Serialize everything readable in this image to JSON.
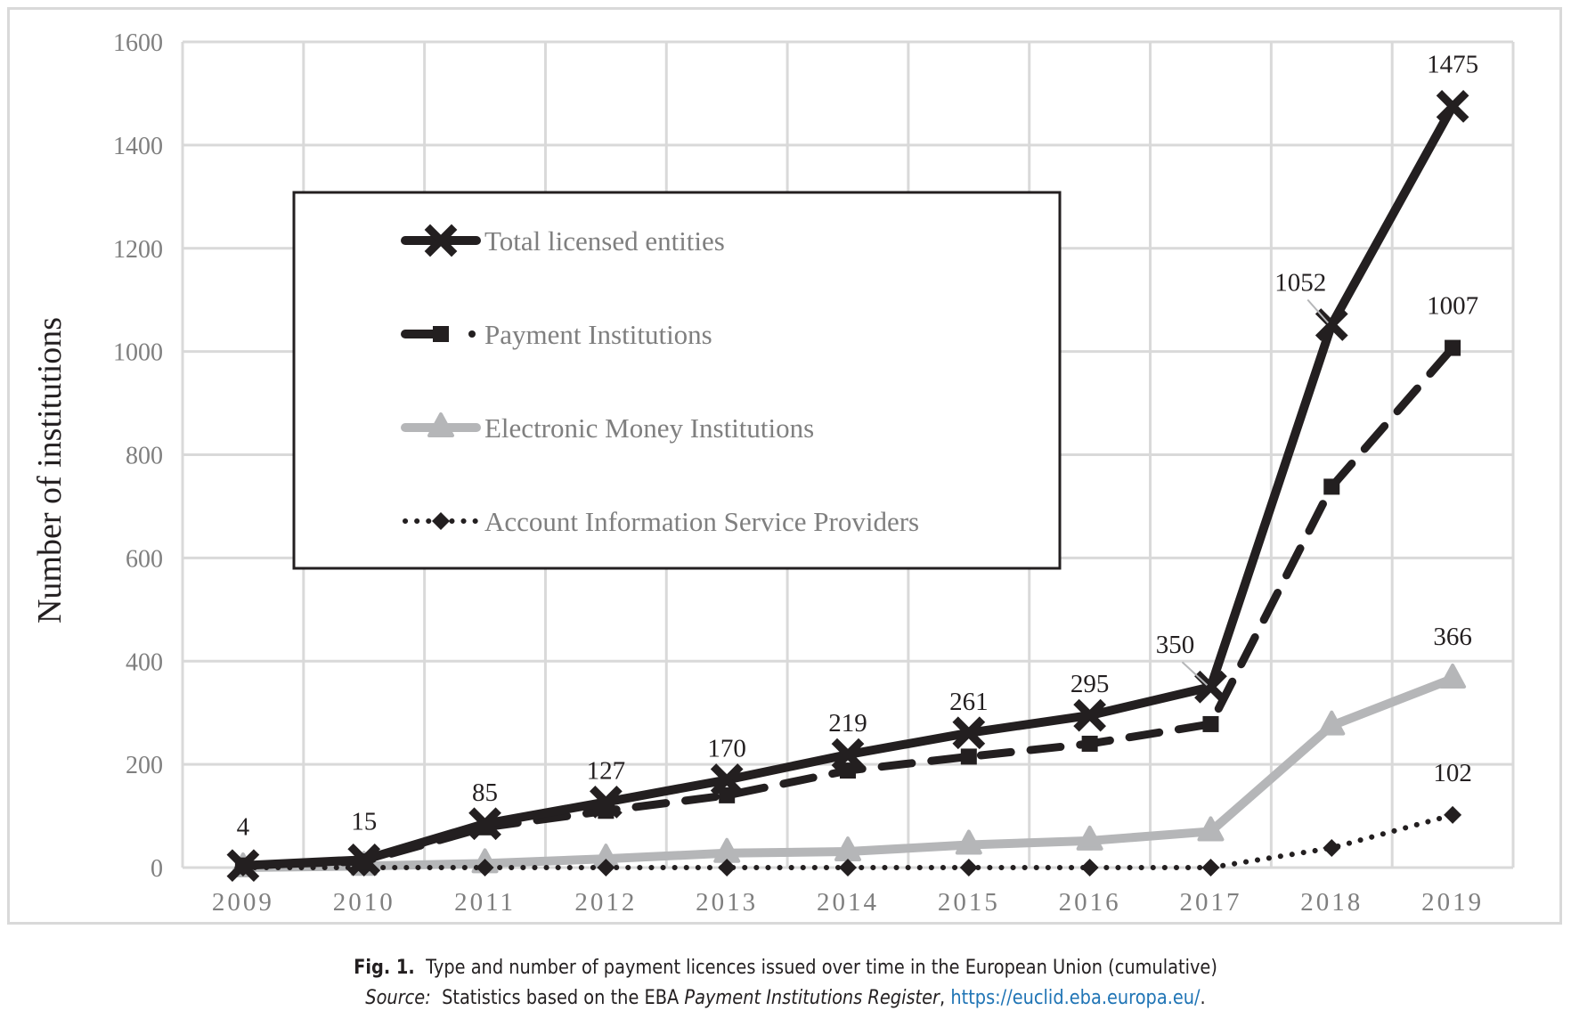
{
  "chart_data": {
    "type": "line",
    "title": "",
    "xlabel": "",
    "ylabel": "Number of institutions",
    "categories": [
      "2009",
      "2010",
      "2011",
      "2012",
      "2013",
      "2014",
      "2015",
      "2016",
      "2017",
      "2018",
      "2019"
    ],
    "ylim": [
      0,
      1600
    ],
    "yticks": [
      0,
      200,
      400,
      600,
      800,
      1000,
      1200,
      1400,
      1600
    ],
    "grid": true,
    "legend_position": "upper-left-inside",
    "series": [
      {
        "name": "Total licensed entities",
        "style": "solid",
        "marker": "x-cross",
        "color": "#231f20",
        "values": [
          4,
          15,
          85,
          127,
          170,
          219,
          261,
          295,
          350,
          1052,
          1475
        ],
        "labels": [
          "4",
          "15",
          "85",
          "127",
          "170",
          "219",
          "261",
          "295",
          "350",
          "1052",
          "1475"
        ]
      },
      {
        "name": "Payment Institutions",
        "style": "dashed",
        "marker": "square",
        "color": "#231f20",
        "values": [
          4,
          12,
          78,
          110,
          140,
          188,
          215,
          240,
          278,
          738,
          1007
        ],
        "labels": [
          "",
          "",
          "",
          "",
          "",
          "",
          "",
          "",
          "",
          "",
          "1007"
        ]
      },
      {
        "name": "Electronic Money Institutions",
        "style": "solid",
        "marker": "triangle",
        "color": "#b5b6b8",
        "values": [
          0,
          3,
          8,
          17,
          28,
          31,
          44,
          52,
          70,
          275,
          366
        ],
        "labels": [
          "",
          "",
          "",
          "",
          "",
          "",
          "",
          "",
          "",
          "",
          "366"
        ]
      },
      {
        "name": "Account Information Service Providers",
        "style": "dotted",
        "marker": "diamond",
        "color": "#231f20",
        "values": [
          0,
          0,
          0,
          0,
          0,
          0,
          0,
          0,
          0,
          38,
          102
        ],
        "labels": [
          "",
          "",
          "",
          "",
          "",
          "",
          "",
          "",
          "",
          "",
          "102"
        ]
      }
    ]
  },
  "caption": {
    "fig_label": "Fig. 1.",
    "fig_text": "Type and number of payment licences issued over time in the European Union (cumulative)",
    "source_label": "Source:",
    "source_text_before": "Statistics based on the EBA ",
    "source_italic": "Payment Institutions Register",
    "source_text_after": ", ",
    "source_link": "https://euclid.eba.europa.eu/",
    "source_end": "."
  }
}
